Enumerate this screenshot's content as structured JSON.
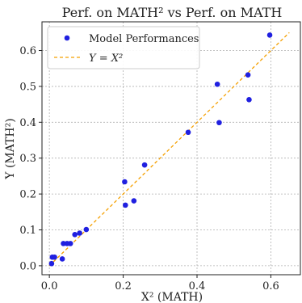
{
  "chart_data": {
    "type": "scatter",
    "title": "Perf. on MATH² vs Perf. on MATH",
    "xlabel": "X² (MATH)",
    "ylabel": "Y (MATH²)",
    "xlim": [
      -0.02,
      0.68
    ],
    "ylim": [
      -0.025,
      0.68
    ],
    "x_ticks": [
      0.0,
      0.2,
      0.4,
      0.6
    ],
    "x_tick_labels": [
      "0.0",
      "0.2",
      "0.4",
      "0.6"
    ],
    "y_ticks": [
      0.0,
      0.1,
      0.2,
      0.3,
      0.4,
      0.5,
      0.6
    ],
    "y_tick_labels": [
      "0.0",
      "0.1",
      "0.2",
      "0.3",
      "0.4",
      "0.5",
      "0.6"
    ],
    "grid": true,
    "legend_position": "top-left",
    "series": [
      {
        "name": "Model Performances",
        "kind": "scatter",
        "color": "#2020e0",
        "points": [
          {
            "x": 0.006,
            "y": 0.006
          },
          {
            "x": 0.008,
            "y": 0.024
          },
          {
            "x": 0.014,
            "y": 0.024
          },
          {
            "x": 0.035,
            "y": 0.019
          },
          {
            "x": 0.038,
            "y": 0.062
          },
          {
            "x": 0.048,
            "y": 0.062
          },
          {
            "x": 0.057,
            "y": 0.062
          },
          {
            "x": 0.069,
            "y": 0.087
          },
          {
            "x": 0.082,
            "y": 0.091
          },
          {
            "x": 0.1,
            "y": 0.101
          },
          {
            "x": 0.204,
            "y": 0.234
          },
          {
            "x": 0.206,
            "y": 0.169
          },
          {
            "x": 0.229,
            "y": 0.181
          },
          {
            "x": 0.258,
            "y": 0.281
          },
          {
            "x": 0.376,
            "y": 0.372
          },
          {
            "x": 0.455,
            "y": 0.506
          },
          {
            "x": 0.46,
            "y": 0.399
          },
          {
            "x": 0.538,
            "y": 0.532
          },
          {
            "x": 0.541,
            "y": 0.463
          },
          {
            "x": 0.597,
            "y": 0.643
          }
        ]
      },
      {
        "name": "Y = X²",
        "kind": "line",
        "style": "dashed",
        "color": "#f5a000",
        "x": [
          0.0,
          0.65
        ],
        "y": [
          0.0,
          0.65
        ]
      }
    ]
  },
  "colors": {
    "scatter": "#2020e0",
    "reference_line": "#f5a000",
    "grid": "#b0b0b0"
  }
}
